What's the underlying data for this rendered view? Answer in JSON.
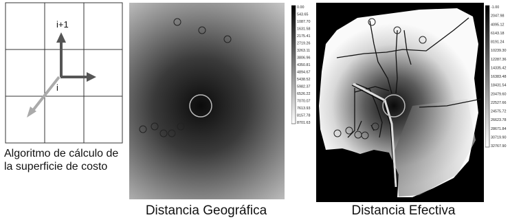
{
  "grid_diagram": {
    "label_up": "i+1",
    "label_center": "i",
    "caption": "Algoritmo de cálculo de la superficie de costo"
  },
  "geographic_map": {
    "caption": "Distancia Geográfica",
    "legend_values": [
      "0.00",
      "543.65",
      "1087.70",
      "1631.58",
      "2175.41",
      "2719.26",
      "3263.11",
      "3806.96",
      "4350.81",
      "4894.67",
      "5438.52",
      "5982.37",
      "6526.22",
      "7070.07",
      "7613.93",
      "8157.78",
      "8701.63"
    ]
  },
  "effective_map": {
    "caption": "Distancia Efectiva",
    "legend_values": [
      "-1.00",
      "2047.98",
      "4095.12",
      "6143.18",
      "8191.24",
      "10239.30",
      "12287.36",
      "14335.42",
      "16383.48",
      "18431.54",
      "20479.60",
      "22527.66",
      "24575.72",
      "26623.78",
      "28671.84",
      "30719.90",
      "32767.90"
    ]
  },
  "colors": {
    "dark": "#111111",
    "mid": "#7a7a7a",
    "light": "#f4f4f4",
    "arrow_dark": "#555555",
    "arrow_light": "#aaaaaa"
  }
}
